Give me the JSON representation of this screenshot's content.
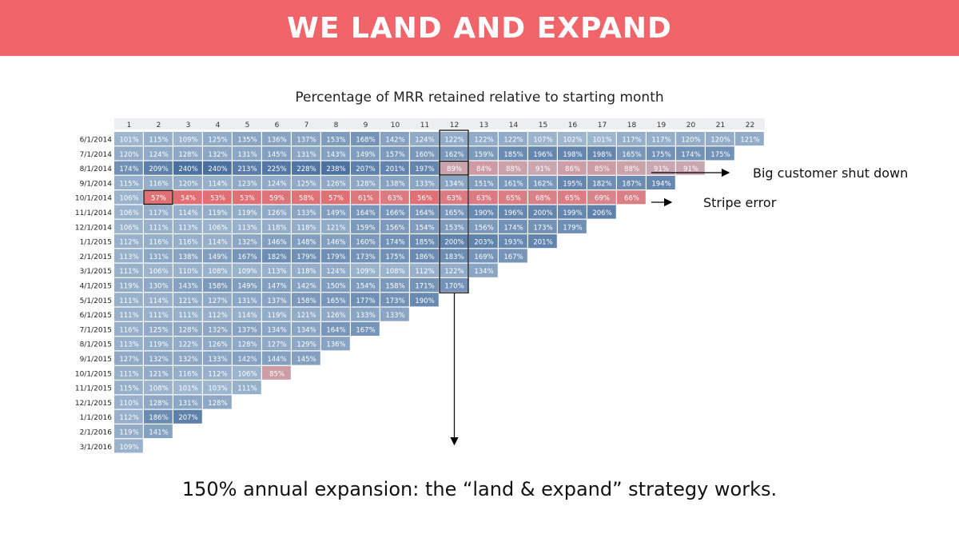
{
  "banner": {
    "title": "WE LAND AND EXPAND"
  },
  "subtitle": "Percentage of MRR retained relative to starting month",
  "footer": "150% annual expansion: the “land & expand” strategy works.",
  "annotations": {
    "big_customer": "Big customer shut down",
    "stripe_error": "Stripe error"
  },
  "colors": {
    "banner": "#f0646a",
    "high": "#4a70a0",
    "low": "#e06e72"
  },
  "chart_data": {
    "type": "heatmap",
    "title": "Percentage of MRR retained relative to starting month",
    "months": [
      "1",
      "2",
      "3",
      "4",
      "5",
      "6",
      "7",
      "8",
      "9",
      "10",
      "11",
      "12",
      "13",
      "14",
      "15",
      "16",
      "17",
      "18",
      "19",
      "20",
      "21",
      "22"
    ],
    "highlight_column": "12",
    "highlight_cells": [
      {
        "cohort": "10/1/2014",
        "month": "2"
      }
    ],
    "cohorts": [
      {
        "date": "6/1/2014",
        "values": [
          101,
          115,
          109,
          125,
          135,
          136,
          137,
          153,
          168,
          142,
          124,
          122,
          122,
          122,
          107,
          102,
          101,
          117,
          117,
          120,
          120,
          121
        ]
      },
      {
        "date": "7/1/2014",
        "values": [
          120,
          124,
          128,
          132,
          131,
          145,
          131,
          143,
          149,
          157,
          160,
          162,
          159,
          185,
          196,
          198,
          198,
          165,
          175,
          174,
          175
        ]
      },
      {
        "date": "8/1/2014",
        "values": [
          174,
          209,
          240,
          240,
          213,
          225,
          228,
          238,
          207,
          201,
          197,
          89,
          84,
          88,
          91,
          86,
          85,
          88,
          91,
          91
        ]
      },
      {
        "date": "9/1/2014",
        "values": [
          115,
          116,
          120,
          114,
          123,
          124,
          125,
          126,
          128,
          138,
          133,
          134,
          151,
          161,
          162,
          195,
          182,
          187,
          194
        ]
      },
      {
        "date": "10/1/2014",
        "values": [
          106,
          57,
          54,
          53,
          53,
          59,
          58,
          57,
          61,
          63,
          56,
          63,
          63,
          65,
          68,
          65,
          69,
          66
        ]
      },
      {
        "date": "11/1/2014",
        "values": [
          106,
          117,
          114,
          119,
          119,
          126,
          133,
          149,
          164,
          166,
          164,
          165,
          190,
          196,
          200,
          199,
          206
        ]
      },
      {
        "date": "12/1/2014",
        "values": [
          106,
          111,
          113,
          106,
          113,
          118,
          118,
          121,
          159,
          156,
          154,
          153,
          156,
          174,
          173,
          179
        ]
      },
      {
        "date": "1/1/2015",
        "values": [
          112,
          116,
          116,
          114,
          132,
          146,
          148,
          146,
          160,
          174,
          185,
          200,
          203,
          193,
          201
        ]
      },
      {
        "date": "2/1/2015",
        "values": [
          113,
          131,
          138,
          149,
          167,
          182,
          179,
          179,
          173,
          175,
          186,
          183,
          169,
          167
        ]
      },
      {
        "date": "3/1/2015",
        "values": [
          111,
          106,
          110,
          108,
          109,
          113,
          118,
          124,
          109,
          108,
          112,
          122,
          134
        ]
      },
      {
        "date": "4/1/2015",
        "values": [
          119,
          130,
          143,
          158,
          149,
          147,
          142,
          150,
          154,
          158,
          171,
          170
        ]
      },
      {
        "date": "5/1/2015",
        "values": [
          111,
          114,
          121,
          127,
          131,
          137,
          158,
          165,
          177,
          173,
          190
        ]
      },
      {
        "date": "6/1/2015",
        "values": [
          111,
          111,
          111,
          112,
          114,
          119,
          121,
          126,
          133,
          133
        ]
      },
      {
        "date": "7/1/2015",
        "values": [
          116,
          125,
          128,
          132,
          137,
          134,
          134,
          164,
          167
        ]
      },
      {
        "date": "8/1/2015",
        "values": [
          113,
          119,
          122,
          126,
          128,
          127,
          129,
          136
        ]
      },
      {
        "date": "9/1/2015",
        "values": [
          127,
          132,
          132,
          133,
          142,
          144,
          145
        ]
      },
      {
        "date": "10/1/2015",
        "values": [
          111,
          121,
          116,
          112,
          106,
          85
        ]
      },
      {
        "date": "11/1/2015",
        "values": [
          115,
          108,
          101,
          103,
          111
        ]
      },
      {
        "date": "12/1/2015",
        "values": [
          110,
          128,
          131,
          128
        ]
      },
      {
        "date": "1/1/2016",
        "values": [
          112,
          186,
          207
        ]
      },
      {
        "date": "2/1/2016",
        "values": [
          119,
          141
        ]
      },
      {
        "date": "3/1/2016",
        "values": [
          109
        ]
      }
    ]
  }
}
